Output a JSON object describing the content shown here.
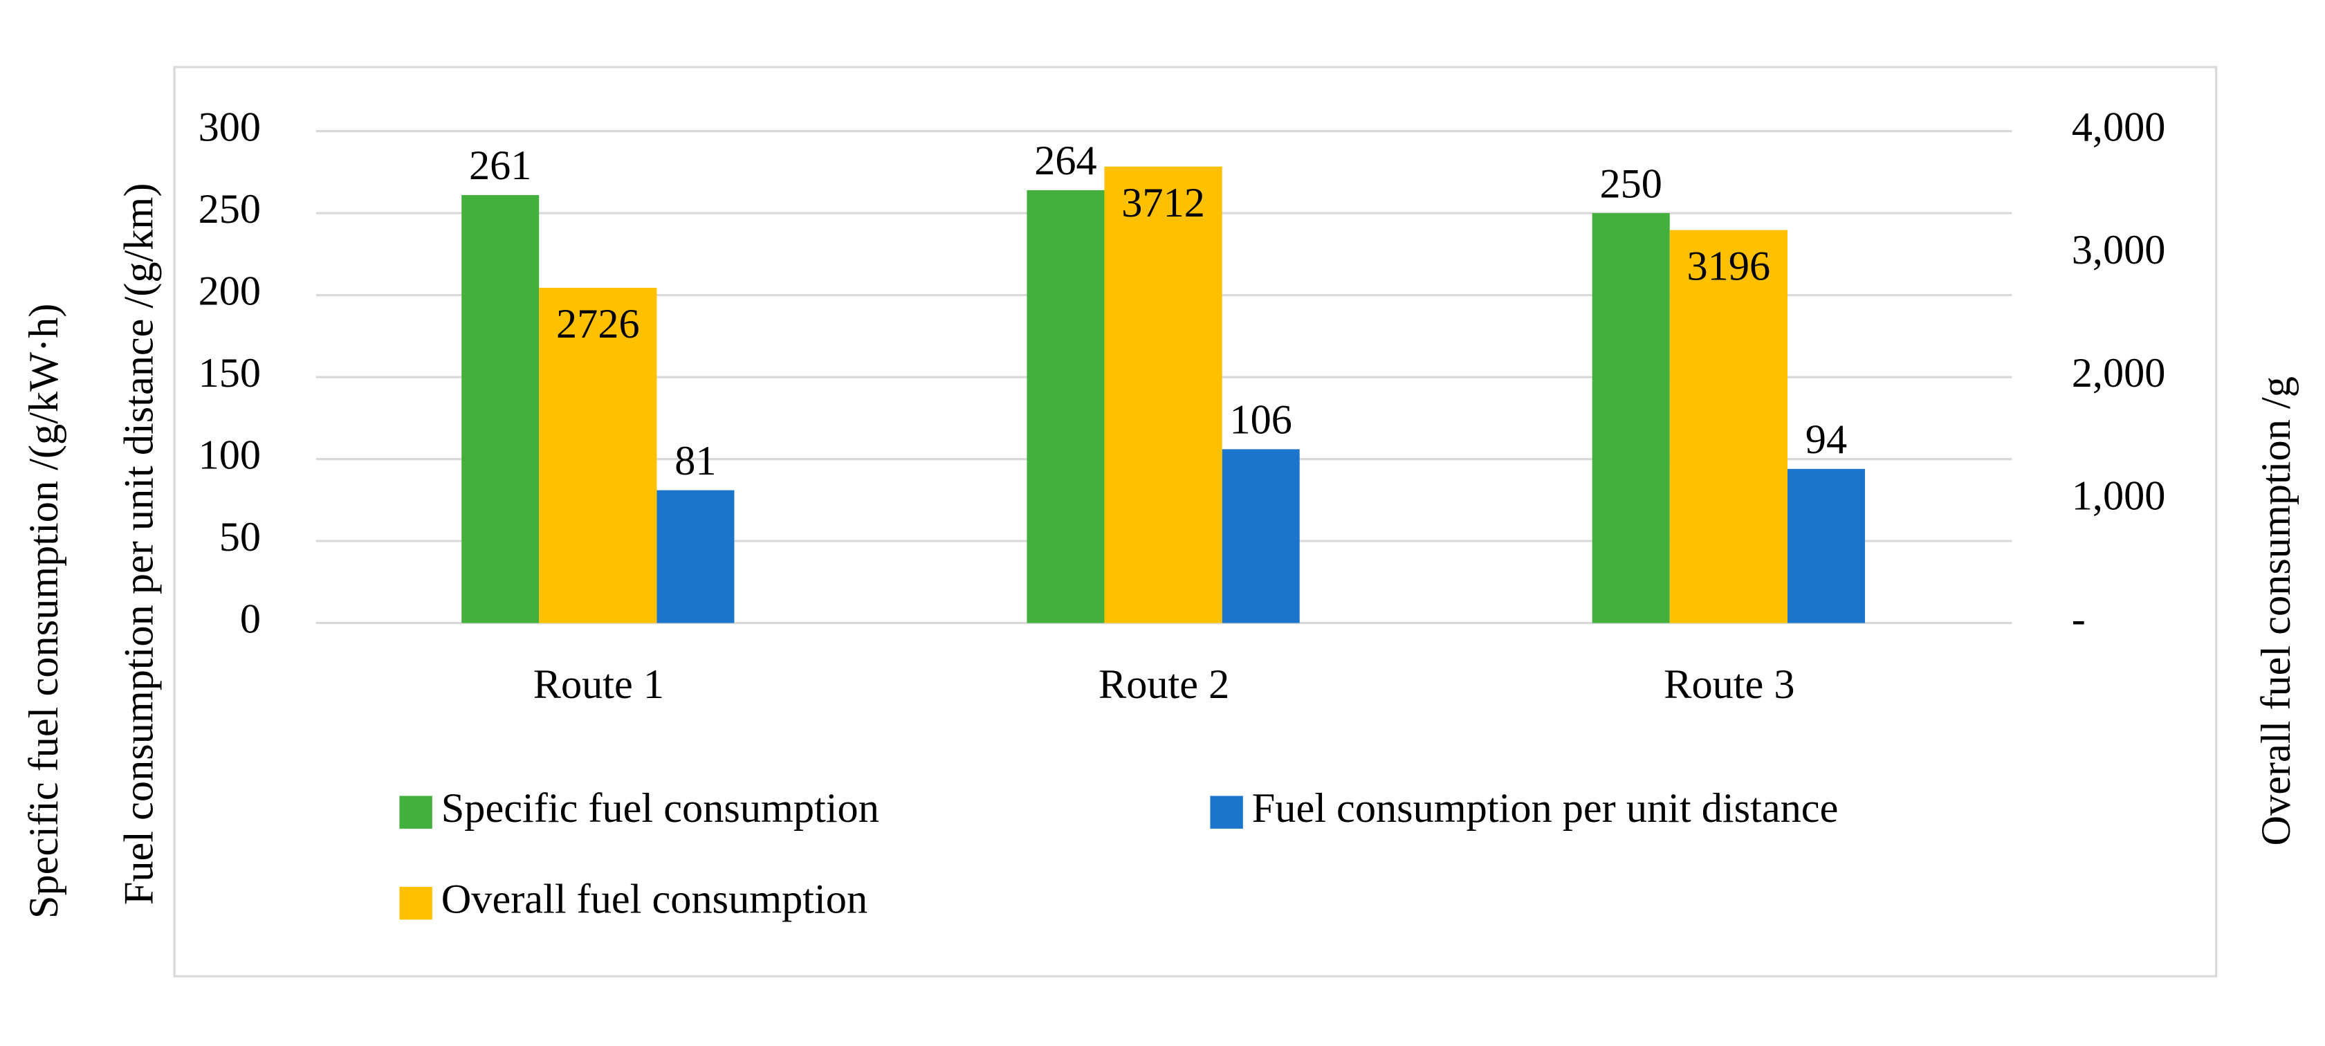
{
  "chart_data": {
    "type": "bar",
    "categories": [
      "Route 1",
      "Route 2",
      "Route 3"
    ],
    "series": [
      {
        "name": "Specific fuel consumption",
        "color": "#43b03d",
        "values": [
          261,
          264,
          250
        ]
      },
      {
        "name": "Fuel consumption per unit distance",
        "color": "#1b75cd",
        "values": [
          81,
          106,
          94
        ]
      },
      {
        "name": "Overall fuel consumption",
        "color": "#ffc000",
        "values": [
          2726,
          3712,
          3196
        ],
        "axis": "y2"
      }
    ],
    "y_label": "Specific fuel consumption /(g/kW·h)",
    "y_label_2": "Fuel consumption per unit distance /(g/km)",
    "y2_label": "Overall fuel consumption /g",
    "ylim": [
      0,
      300
    ],
    "yticks": [
      0,
      50,
      100,
      150,
      200,
      250,
      300
    ],
    "y2lim": [
      0,
      4000
    ],
    "y2ticks": [
      {
        "value": 0,
        "label": "-"
      },
      {
        "value": 1000,
        "label": "1,000"
      },
      {
        "value": 2000,
        "label": "2,000"
      },
      {
        "value": 3000,
        "label": "3,000"
      },
      {
        "value": 4000,
        "label": "4,000"
      }
    ],
    "grid": true
  }
}
